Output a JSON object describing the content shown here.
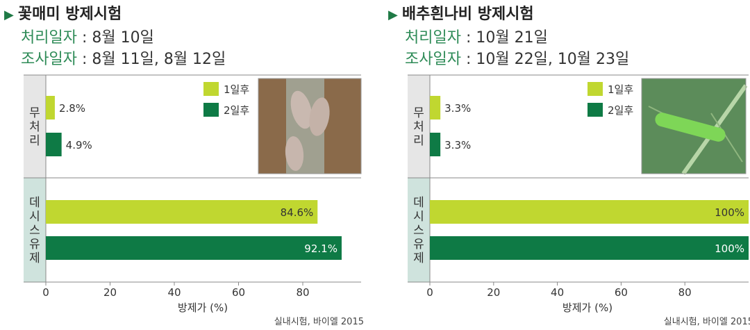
{
  "charts": [
    {
      "title": "꽃매미 방제시험",
      "treat_label": "처리일자",
      "treat_value": " : 8월 10일",
      "survey_label": "조사일자",
      "survey_value": " : 8월 11일, 8월 12일",
      "source": "실내시험, 바이엘 2015",
      "photo": "spotted-lanternfly-photo",
      "chart_data": {
        "type": "bar",
        "orientation": "horizontal",
        "groups": [
          "무처리",
          "데시스 유제"
        ],
        "series": [
          {
            "name": "1일후",
            "color": "#c0d730",
            "values": [
              2.8,
              84.6
            ],
            "labels": [
              "2.8%",
              "84.6%"
            ]
          },
          {
            "name": "2일후",
            "color": "#0e7a45",
            "values": [
              4.9,
              92.1
            ],
            "labels": [
              "4.9%",
              "92.1%"
            ]
          }
        ],
        "xlabel": "방제가 (%)",
        "xticks": [
          0,
          20,
          40,
          60,
          80
        ],
        "xlim": [
          0,
          100
        ],
        "legend_position": "top-right"
      }
    },
    {
      "title": "배추흰나비 방제시험",
      "treat_label": "처리일자",
      "treat_value": " : 10월 21일",
      "survey_label": "조사일자",
      "survey_value": " : 10월 22일, 10월 23일",
      "source": "실내시험, 바이엘 2015",
      "photo": "cabbage-white-caterpillar-photo",
      "chart_data": {
        "type": "bar",
        "orientation": "horizontal",
        "groups": [
          "무처리",
          "데시스 유제"
        ],
        "series": [
          {
            "name": "1일후",
            "color": "#c0d730",
            "values": [
              3.3,
              100
            ],
            "labels": [
              "3.3%",
              "100%"
            ]
          },
          {
            "name": "2일후",
            "color": "#0e7a45",
            "values": [
              3.3,
              100
            ],
            "labels": [
              "3.3%",
              "100%"
            ]
          }
        ],
        "xlabel": "방제가 (%)",
        "xticks": [
          0,
          20,
          40,
          60,
          80
        ],
        "xlim": [
          0,
          100
        ],
        "legend_position": "top-right"
      }
    }
  ]
}
